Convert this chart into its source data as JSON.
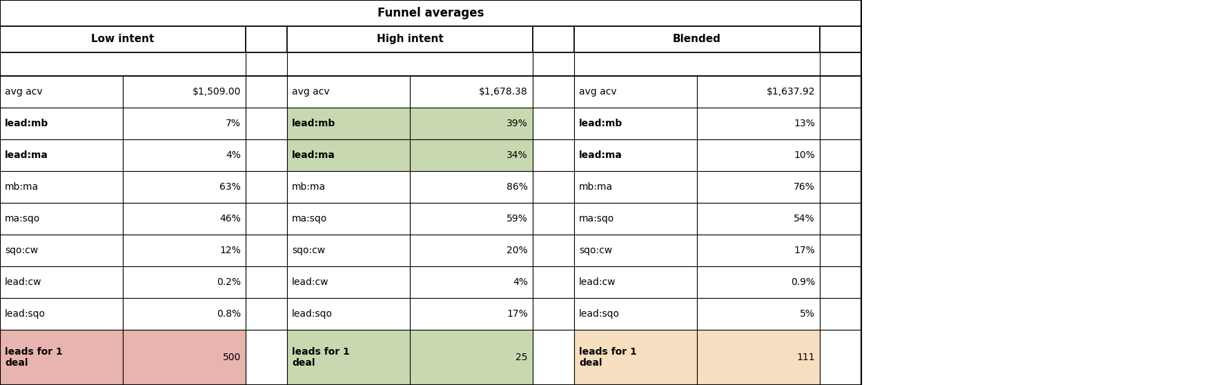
{
  "title": "Funnel averages",
  "sections": [
    "Low intent",
    "High intent",
    "Blended"
  ],
  "rows": [
    {
      "label": "avg acv",
      "low": "$1,509.00",
      "high": "$1,678.38",
      "blended": "$1,637.92",
      "low_bg": null,
      "high_bg": null,
      "blended_bg": null,
      "label_bold": false
    },
    {
      "label": "lead:mb",
      "low": "7%",
      "high": "39%",
      "blended": "13%",
      "low_bg": null,
      "high_bg": "#c8d9b2",
      "blended_bg": null,
      "label_bold": true
    },
    {
      "label": "lead:ma",
      "low": "4%",
      "high": "34%",
      "blended": "10%",
      "low_bg": null,
      "high_bg": "#c8d9b2",
      "blended_bg": null,
      "label_bold": true
    },
    {
      "label": "mb:ma",
      "low": "63%",
      "high": "86%",
      "blended": "76%",
      "low_bg": null,
      "high_bg": null,
      "blended_bg": null,
      "label_bold": false
    },
    {
      "label": "ma:sqo",
      "low": "46%",
      "high": "59%",
      "blended": "54%",
      "low_bg": null,
      "high_bg": null,
      "blended_bg": null,
      "label_bold": false
    },
    {
      "label": "sqo:cw",
      "low": "12%",
      "high": "20%",
      "blended": "17%",
      "low_bg": null,
      "high_bg": null,
      "blended_bg": null,
      "label_bold": false
    },
    {
      "label": "lead:cw",
      "low": "0.2%",
      "high": "4%",
      "blended": "0.9%",
      "low_bg": null,
      "high_bg": null,
      "blended_bg": null,
      "label_bold": false
    },
    {
      "label": "lead:sqo",
      "low": "0.8%",
      "high": "17%",
      "blended": "5%",
      "low_bg": null,
      "high_bg": null,
      "blended_bg": null,
      "label_bold": false
    },
    {
      "label": "leads for 1\ndeal",
      "low": "500",
      "high": "25",
      "blended": "111",
      "low_bg": "#e8b4b0",
      "high_bg": "#c8d9b2",
      "blended_bg": "#f5dfc0",
      "label_bold": true
    }
  ],
  "title_fontsize": 12,
  "header_fontsize": 11,
  "cell_fontsize": 10,
  "figsize": [
    17.78,
    5.58
  ],
  "dpi": 100
}
